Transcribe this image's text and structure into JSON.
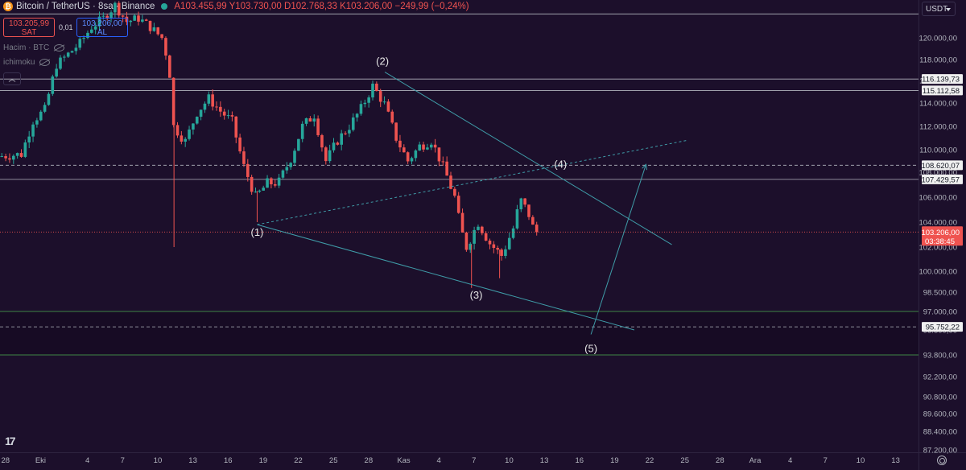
{
  "header": {
    "symbol": "Bitcoin / TetherUS · 8sa · Binance",
    "ohlc": "A103.455,99 Y103.730,00 D102.768,33 K103.206,00 −249,99 (−0,24%)",
    "sell_price": "103.205,99",
    "sell_label": "SAT",
    "spread": "0,01",
    "buy_price": "103.206,00",
    "buy_label": "AL",
    "indicator_volume": "Hacim · BTC",
    "indicator_ichimoku": "ichimoku",
    "currency_button": "USDT",
    "logo": "17"
  },
  "colors": {
    "background": "#1c0f2b",
    "up": "#26a69a",
    "down": "#ef5350",
    "trendline": "#3f9ca8",
    "level_line": "#b2b5be",
    "zone_line": "#4caf50",
    "current_price": "#ef5350"
  },
  "chart_data": {
    "type": "candlestick",
    "ylim": [
      87200,
      122000
    ],
    "y_ticks": [
      {
        "v": 120000,
        "label": "120.000,00"
      },
      {
        "v": 118000,
        "label": "118.000,00"
      },
      {
        "v": 116000,
        "label": "116.000,00"
      },
      {
        "v": 114000,
        "label": "114.000,00"
      },
      {
        "v": 112000,
        "label": "112.000,00"
      },
      {
        "v": 110000,
        "label": "110.000,00"
      },
      {
        "v": 108000,
        "label": "108.000,00"
      },
      {
        "v": 106000,
        "label": "106.000,00"
      },
      {
        "v": 104000,
        "label": "104.000,00"
      },
      {
        "v": 102000,
        "label": "102.000,00"
      },
      {
        "v": 100000,
        "label": "100.000,00"
      },
      {
        "v": 98500,
        "label": "98.500,00"
      },
      {
        "v": 97000,
        "label": "97.000,00"
      },
      {
        "v": 95500,
        "label": "95.500,00"
      },
      {
        "v": 93800,
        "label": "93.800,00"
      },
      {
        "v": 92200,
        "label": "92.200,00"
      },
      {
        "v": 90800,
        "label": "90.800,00"
      },
      {
        "v": 89600,
        "label": "89.600,00"
      },
      {
        "v": 88400,
        "label": "88.400,00"
      },
      {
        "v": 87200,
        "label": "87.200,00"
      }
    ],
    "x_ticks": [
      {
        "d": -4,
        "label": "28"
      },
      {
        "d": -1,
        "label": "Eki"
      },
      {
        "d": 3,
        "label": "4"
      },
      {
        "d": 6,
        "label": "7"
      },
      {
        "d": 9,
        "label": "10"
      },
      {
        "d": 12,
        "label": "13"
      },
      {
        "d": 15,
        "label": "16"
      },
      {
        "d": 18,
        "label": "19"
      },
      {
        "d": 21,
        "label": "22"
      },
      {
        "d": 24,
        "label": "25"
      },
      {
        "d": 27,
        "label": "28"
      },
      {
        "d": 30,
        "label": "Kas"
      },
      {
        "d": 33,
        "label": "4"
      },
      {
        "d": 36,
        "label": "7"
      },
      {
        "d": 39,
        "label": "10"
      },
      {
        "d": 42,
        "label": "13"
      },
      {
        "d": 45,
        "label": "16"
      },
      {
        "d": 48,
        "label": "19"
      },
      {
        "d": 51,
        "label": "22"
      },
      {
        "d": 54,
        "label": "25"
      },
      {
        "d": 57,
        "label": "28"
      },
      {
        "d": 60,
        "label": "Ara"
      },
      {
        "d": 63,
        "label": "4"
      },
      {
        "d": 66,
        "label": "7"
      },
      {
        "d": 69,
        "label": "10"
      },
      {
        "d": 72,
        "label": "13"
      }
    ],
    "anchors": [
      [
        -5,
        109400
      ],
      [
        -3,
        109600
      ],
      [
        -2,
        112500
      ],
      [
        -1,
        113400
      ],
      [
        0,
        117500
      ],
      [
        1,
        118500
      ],
      [
        2,
        119500
      ],
      [
        3,
        121000
      ],
      [
        4,
        121800
      ],
      [
        5,
        123000
      ],
      [
        6,
        121500
      ],
      [
        7,
        121800
      ],
      [
        8,
        121000
      ],
      [
        9,
        120000
      ],
      [
        9.6,
        117500
      ],
      [
        10,
        112000
      ],
      [
        11,
        110700
      ],
      [
        12,
        113200
      ],
      [
        13,
        114400
      ],
      [
        14,
        113300
      ],
      [
        15,
        112400
      ],
      [
        16,
        108500
      ],
      [
        17,
        106000
      ],
      [
        18,
        107100
      ],
      [
        19,
        107200
      ],
      [
        20,
        109200
      ],
      [
        21,
        112000
      ],
      [
        22,
        113000
      ],
      [
        23,
        109000
      ],
      [
        24,
        110800
      ],
      [
        25,
        112000
      ],
      [
        26,
        113500
      ],
      [
        27,
        115500
      ],
      [
        27.5,
        114700
      ],
      [
        28,
        113900
      ],
      [
        29,
        111000
      ],
      [
        30,
        109000
      ],
      [
        31,
        110300
      ],
      [
        32,
        110800
      ],
      [
        33,
        108500
      ],
      [
        34,
        106000
      ],
      [
        34.5,
        103500
      ],
      [
        35,
        102000
      ],
      [
        36,
        104000
      ],
      [
        37,
        102300
      ],
      [
        38,
        101300
      ],
      [
        39,
        103500
      ],
      [
        39.6,
        105800
      ],
      [
        40.3,
        104700
      ],
      [
        40.8,
        103200
      ]
    ],
    "wicks": [
      {
        "d": 9.7,
        "v": 102000
      },
      {
        "d": 35.1,
        "v": 98800
      },
      {
        "d": 37.5,
        "v": 99500
      },
      {
        "d": 16.8,
        "v": 104000
      }
    ],
    "current_price": 103206,
    "current_label": "103.206,00",
    "countdown": "03:38:45",
    "levels": [
      {
        "v": 122200,
        "style": "solid",
        "label": ""
      },
      {
        "v": 116139.73,
        "style": "solid",
        "label": "116.139,73"
      },
      {
        "v": 115112.58,
        "style": "solid",
        "label": "115.112,58"
      },
      {
        "v": 108620.07,
        "style": "dashed",
        "label": "108.620,07"
      },
      {
        "v": 107429.57,
        "style": "solid",
        "label": "107.429,57"
      },
      {
        "v": 97000,
        "style": "zone",
        "label": ""
      },
      {
        "v": 95752.22,
        "style": "dashed",
        "label": "95.752,22"
      },
      {
        "v": 93800,
        "style": "zone",
        "label": ""
      }
    ],
    "trendlines": [
      {
        "from": [
          16.8,
          103800
        ],
        "to": [
          53.5,
          110800
        ],
        "style": "dashed"
      },
      {
        "from": [
          16.8,
          103800
        ],
        "to": [
          49,
          95500
        ],
        "style": "solid"
      },
      {
        "from": [
          27.7,
          116800
        ],
        "to": [
          52.2,
          102200
        ],
        "style": "solid"
      },
      {
        "from": [
          45.3,
          95200
        ],
        "to": [
          50,
          108700
        ],
        "style": "arrow"
      }
    ],
    "waves": [
      {
        "d": 16.8,
        "v": 102900,
        "label": "(1)"
      },
      {
        "d": 27.5,
        "v": 117500,
        "label": "(2)"
      },
      {
        "d": 35.5,
        "v": 98000,
        "label": "(3)"
      },
      {
        "d": 42.7,
        "v": 108400,
        "label": "(4)"
      },
      {
        "d": 45.3,
        "v": 94000,
        "label": "(5)"
      }
    ]
  }
}
